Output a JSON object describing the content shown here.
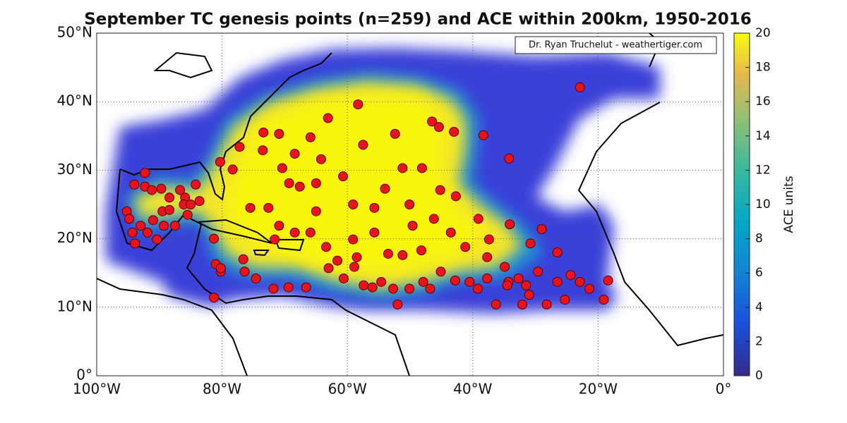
{
  "chart_data": {
    "type": "scatter",
    "title": "September TC genesis points (n=259) and ACE within 200km, 1950-2016",
    "annotation": "Dr. Ryan Truchelut - weathertiger.com",
    "color": "#e8141b",
    "grid": true,
    "xlim": [
      -100,
      0
    ],
    "ylim": [
      0,
      50
    ],
    "xticks": [
      {
        "value": -100,
        "label": "100°W"
      },
      {
        "value": -80,
        "label": "80°W"
      },
      {
        "value": -60,
        "label": "60°W"
      },
      {
        "value": -40,
        "label": "40°W"
      },
      {
        "value": -20,
        "label": "20°W"
      },
      {
        "value": 0,
        "label": "0°"
      }
    ],
    "yticks": [
      {
        "value": 0,
        "label": "0°"
      },
      {
        "value": 10,
        "label": "10°N"
      },
      {
        "value": 20,
        "label": "20°N"
      },
      {
        "value": 30,
        "label": "30°N"
      },
      {
        "value": 40,
        "label": "40°N"
      },
      {
        "value": 50,
        "label": "50°N"
      }
    ],
    "colorbar": {
      "label": "ACE units",
      "lim": [
        0,
        20
      ],
      "ticks": [
        0,
        2,
        4,
        6,
        8,
        10,
        12,
        14,
        16,
        18,
        20
      ]
    },
    "x": [
      -94.0,
      -92.3,
      -91.2,
      -89.7,
      -88.4,
      -86.7,
      -85.9,
      -84.2,
      -94.3,
      -93.9,
      -93.0,
      -91.9,
      -91.0,
      -89.5,
      -88.4,
      -87.5,
      -86.1,
      -85.0,
      -92.3,
      -95.2,
      -94.8,
      -90.4,
      -89.3,
      -85.5,
      -83.6,
      -81.3,
      -81.0,
      -80.2,
      -81.3,
      -76.6,
      -76.4,
      -74.6,
      -71.8,
      -69.4,
      -66.6,
      -71.6,
      -70.9,
      -68.4,
      -65.9,
      -63.4,
      -61.6,
      -80.3,
      -78.3,
      -77.2,
      -73.4,
      -73.5,
      -70.9,
      -70.4,
      -69.3,
      -68.4,
      -65.9,
      -65.0,
      -64.2,
      -63.1,
      -60.7,
      -59.1,
      -58.3,
      -57.5,
      -55.7,
      -54.0,
      -52.4,
      -51.2,
      -50.1,
      -48.1,
      -46.5,
      -45.4,
      -43.0,
      -45.2,
      -42.7,
      -39.1,
      -38.3,
      -34.2,
      -22.9,
      -58.9,
      -57.4,
      -56.0,
      -54.6,
      -52.7,
      -52.0,
      -50.1,
      -47.9,
      -46.8,
      -45.1,
      -42.8,
      -40.5,
      -39.2,
      -37.7,
      -36.3,
      -34.9,
      -34.3,
      -32.7,
      -32.1,
      -31.0,
      -29.6,
      -28.2,
      -26.5,
      -25.3,
      -24.4,
      -22.9,
      -21.4,
      -19.1,
      -18.4,
      -29.0,
      -30.8,
      -26.5,
      -34.1,
      -37.4,
      -43.5,
      -48.2,
      -51.2,
      -55.7,
      -58.5,
      -59.1,
      -60.6,
      -63.0,
      -37.7,
      -34.5,
      -31.5,
      -41.2,
      -46.2,
      -49.6,
      -53.5,
      -65.0,
      -67.6,
      -72.6,
      -75.5,
      -80.2
    ],
    "y": [
      27.9,
      27.6,
      27.1,
      27.3,
      26.0,
      27.1,
      26.0,
      27.9,
      20.9,
      19.3,
      21.9,
      20.9,
      22.7,
      24.0,
      24.2,
      21.9,
      25.0,
      25.0,
      29.6,
      24.0,
      22.9,
      19.9,
      21.9,
      23.5,
      25.5,
      20.0,
      16.3,
      15.2,
      11.4,
      17.0,
      15.2,
      14.2,
      12.7,
      12.9,
      12.9,
      19.9,
      21.9,
      20.9,
      20.9,
      18.8,
      16.8,
      31.2,
      30.1,
      33.4,
      35.5,
      32.9,
      35.3,
      30.3,
      28.1,
      32.4,
      34.8,
      28.1,
      31.6,
      37.6,
      29.1,
      25.0,
      39.6,
      33.7,
      24.5,
      27.3,
      35.3,
      30.3,
      25.0,
      30.3,
      37.1,
      36.3,
      35.6,
      27.1,
      26.2,
      22.9,
      35.1,
      31.7,
      42.1,
      15.9,
      13.2,
      12.9,
      13.7,
      12.7,
      10.4,
      12.7,
      13.7,
      12.7,
      15.2,
      13.9,
      13.7,
      12.7,
      14.2,
      10.4,
      15.9,
      13.7,
      14.2,
      10.4,
      11.8,
      15.2,
      10.4,
      13.7,
      11.1,
      14.7,
      13.7,
      12.7,
      11.1,
      13.9,
      21.4,
      19.3,
      18.0,
      22.1,
      19.9,
      20.9,
      18.3,
      17.6,
      20.9,
      17.3,
      19.9,
      14.2,
      15.7,
      17.3,
      13.2,
      13.2,
      18.8,
      22.9,
      21.9,
      17.8,
      24.0,
      27.6,
      24.5,
      24.5,
      15.7
    ]
  }
}
